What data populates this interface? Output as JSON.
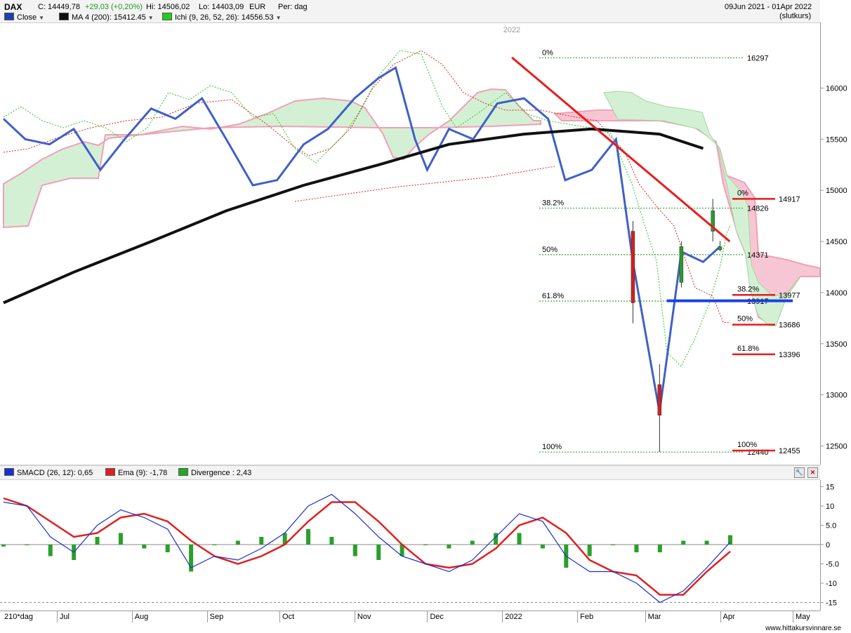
{
  "header": {
    "symbol": "DAX",
    "close": "C: 14449,78",
    "change": "+29,03 (+0,20%)",
    "high": "Hi: 14506,02",
    "low": "Lo: 14403,09",
    "currency": "EUR",
    "period": "Per: dag",
    "date_range": "09Jun 2021 - 01Apr 2022",
    "price_type": "(slutkurs)"
  },
  "legend": [
    {
      "label": "Close",
      "color": "#1f3fb0"
    },
    {
      "label": "MA 4 (200): 15412.45",
      "color": "#111111"
    },
    {
      "label": "Ichi (9, 26, 52, 26): 14556.53",
      "color": "#22cc22"
    }
  ],
  "macd_legend": [
    {
      "label": "SMACD (26, 12): 0,65",
      "color": "#1a2fd0"
    },
    {
      "label": "Ema (9): -1,78",
      "color": "#e02020"
    },
    {
      "label": "Divergence : 2,43",
      "color": "#22aa22"
    }
  ],
  "icons": [
    "wrench-icon",
    "close-icon"
  ],
  "chart_data": [
    {
      "type": "line",
      "title": "DAX",
      "x_labels": [
        "Jul",
        "Aug",
        "Sep",
        "Oct",
        "Nov",
        "Dec",
        "2022",
        "Feb",
        "Mar",
        "Apr",
        "May"
      ],
      "ylim": [
        12400,
        16450
      ],
      "y_ticks": [
        12500,
        13000,
        13500,
        14000,
        14500,
        15000,
        15500,
        16000
      ],
      "year_marker": "2022",
      "colors": {
        "close": "#4060c8",
        "ma": "#111111",
        "trend": "#e81c1c",
        "fib_dotted": "#3aa63a",
        "candle_up": "#2a9a2a",
        "candle_down": "#d02020",
        "cloud_green": "#d4f0d4",
        "cloud_pink": "#f7c6d4",
        "support": "#1840e8"
      },
      "series": [
        {
          "name": "Close",
          "x": [
            "2021-06-09",
            "2021-06-18",
            "2021-06-28",
            "2021-07-08",
            "2021-07-19",
            "2021-07-29",
            "2021-08-09",
            "2021-08-19",
            "2021-08-30",
            "2021-09-09",
            "2021-09-20",
            "2021-09-30",
            "2021-10-11",
            "2021-10-21",
            "2021-11-01",
            "2021-11-11",
            "2021-11-18",
            "2021-11-26",
            "2021-12-01",
            "2021-12-10",
            "2021-12-20",
            "2021-12-30",
            "2022-01-10",
            "2022-01-20",
            "2022-01-27",
            "2022-02-07",
            "2022-02-17",
            "2022-02-24",
            "2022-03-07",
            "2022-03-16",
            "2022-03-25",
            "2022-04-01"
          ],
          "values": [
            15700,
            15500,
            15450,
            15600,
            15200,
            15500,
            15800,
            15700,
            15900,
            15500,
            15050,
            15100,
            15450,
            15600,
            15900,
            16100,
            16200,
            15500,
            15200,
            15600,
            15500,
            15850,
            15900,
            15700,
            15100,
            15200,
            15500,
            14300,
            12830,
            14400,
            14300,
            14450
          ]
        },
        {
          "name": "MA 4 (200): 15412.45",
          "x": [
            "2021-06-09",
            "2021-07-08",
            "2021-08-09",
            "2021-09-09",
            "2021-10-11",
            "2021-11-11",
            "2021-12-10",
            "2022-01-10",
            "2022-02-07",
            "2022-03-07",
            "2022-03-25"
          ],
          "values": [
            13900,
            14200,
            14500,
            14800,
            15050,
            15250,
            15450,
            15550,
            15600,
            15550,
            15410
          ]
        }
      ],
      "candles": [
        {
          "x": "2022-02-24",
          "o": 14600,
          "h": 14700,
          "l": 13700,
          "c": 13900
        },
        {
          "x": "2022-03-07",
          "o": 13100,
          "h": 13300,
          "l": 12440,
          "c": 12800
        },
        {
          "x": "2022-03-16",
          "o": 14100,
          "h": 14500,
          "l": 14050,
          "c": 14450
        },
        {
          "x": "2022-03-29",
          "o": 14600,
          "h": 14917,
          "l": 14500,
          "c": 14800
        },
        {
          "x": "2022-04-01",
          "o": 14420,
          "h": 14506,
          "l": 14403,
          "c": 14449
        }
      ],
      "fibonacci_1": [
        {
          "label": "0%",
          "value": 16297,
          "level_text": "16297"
        },
        {
          "label": "38.2%",
          "value": 14826,
          "level_text": "14826"
        },
        {
          "label": "50%",
          "value": 14371,
          "level_text": "14371"
        },
        {
          "label": "61.8%",
          "value": 13917,
          "level_text": "13917"
        },
        {
          "label": "100%",
          "value": 12440,
          "level_text": "12440"
        }
      ],
      "fibonacci_2": [
        {
          "label": "0%",
          "value": 14917,
          "level_text": "14917"
        },
        {
          "label": "38.2%",
          "value": 13977,
          "level_text": "13977"
        },
        {
          "label": "50%",
          "value": 13686,
          "level_text": "13686"
        },
        {
          "label": "61.8%",
          "value": 13396,
          "level_text": "13396"
        },
        {
          "label": "100%",
          "value": 12455,
          "level_text": "12455"
        }
      ],
      "trendline": {
        "x": [
          "2022-01-05",
          "2022-04-05"
        ],
        "values": [
          16300,
          14500
        ]
      },
      "support_line": {
        "x": [
          "2022-03-10",
          "2022-05-01"
        ],
        "values": [
          13920,
          13920
        ]
      }
    },
    {
      "type": "bar",
      "title": "SMACD",
      "ylim": [
        -16,
        16
      ],
      "y_ticks": [
        "15",
        "10",
        "5.0",
        "0",
        "-5.0",
        "-10",
        "-15"
      ],
      "series": [
        {
          "name": "SMACD (26, 12): 0,65",
          "values": [
            11,
            10,
            2,
            -2,
            5,
            9,
            7,
            4,
            -6,
            -3,
            -4,
            -1,
            3,
            10,
            13,
            8,
            2,
            -3,
            -5,
            -7,
            -4,
            2,
            8,
            6,
            -3,
            -7,
            -7,
            -10,
            -15,
            -12,
            -6,
            0.65
          ]
        },
        {
          "name": "Ema (9): -1,78",
          "values": [
            12,
            10,
            6,
            2,
            3,
            7,
            8,
            6,
            1,
            -3,
            -5,
            -3,
            0,
            6,
            11,
            11,
            6,
            0,
            -5,
            -6,
            -5,
            -1,
            5,
            7,
            3,
            -4,
            -7,
            -8,
            -13,
            -13,
            -7,
            -1.78
          ]
        },
        {
          "name": "Divergence : 2,43",
          "values": [
            -0.5,
            0,
            -3,
            -4,
            2,
            3,
            -1,
            -2,
            -7,
            0,
            1,
            2,
            3,
            4,
            2,
            -3,
            -4,
            -3,
            0,
            -1,
            1,
            3,
            3,
            -1,
            -6,
            -3,
            0,
            -2,
            -2,
            1,
            1,
            2.43
          ]
        }
      ]
    }
  ],
  "x_axis": {
    "period_label": "210*dag"
  },
  "footer": {
    "site": "www.hittakursvinnare.se"
  }
}
